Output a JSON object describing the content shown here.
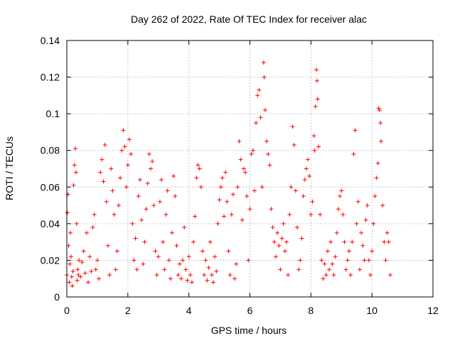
{
  "chart_data": {
    "type": "scatter",
    "title": "Day 262 of 2022, Rate Of TEC Index for receiver alac",
    "xlabel": "GPS time / hours",
    "ylabel": "ROTI / TECUs",
    "xlim": [
      0,
      12
    ],
    "ylim": [
      0,
      0.14
    ],
    "xticks": [
      0,
      2,
      4,
      6,
      8,
      10,
      12
    ],
    "yticks": [
      0,
      0.02,
      0.04,
      0.06,
      0.08,
      0.1,
      0.12,
      0.14
    ],
    "xtick_labels": [
      "0",
      "2",
      "4",
      "6",
      "8",
      "10",
      "12"
    ],
    "ytick_labels": [
      "0",
      "0.02",
      "0.04",
      "0.06",
      "0.08",
      "0.1",
      "0.12",
      "0.14"
    ],
    "grid": true,
    "marker": "+",
    "color": "#ff0000",
    "series": [
      {
        "points": [
          [
            0.0,
            0.012
          ],
          [
            0.02,
            0.046
          ],
          [
            0.04,
            0.056
          ],
          [
            0.06,
            0.028
          ],
          [
            0.08,
            0.008
          ],
          [
            0.1,
            0.018
          ],
          [
            0.12,
            0.035
          ],
          [
            0.14,
            0.022
          ],
          [
            0.16,
            0.011
          ],
          [
            0.18,
            0.006
          ],
          [
            0.2,
            0.014
          ],
          [
            0.22,
            0.061
          ],
          [
            0.25,
            0.072
          ],
          [
            0.28,
            0.081
          ],
          [
            0.3,
            0.068
          ],
          [
            0.32,
            0.04
          ],
          [
            0.34,
            0.009
          ],
          [
            0.36,
            0.015
          ],
          [
            0.38,
            0.012
          ],
          [
            0.4,
            0.02
          ],
          [
            0.45,
            0.011
          ],
          [
            0.5,
            0.019
          ],
          [
            0.55,
            0.025
          ],
          [
            0.6,
            0.013
          ],
          [
            0.65,
            0.035
          ],
          [
            0.7,
            0.008
          ],
          [
            0.75,
            0.022
          ],
          [
            0.8,
            0.014
          ],
          [
            0.85,
            0.038
          ],
          [
            0.9,
            0.045
          ],
          [
            0.95,
            0.015
          ],
          [
            1.0,
            0.02
          ],
          [
            1.05,
            0.01
          ],
          [
            1.1,
            0.068
          ],
          [
            1.15,
            0.075
          ],
          [
            1.2,
            0.063
          ],
          [
            1.25,
            0.083
          ],
          [
            1.3,
            0.052
          ],
          [
            1.35,
            0.028
          ],
          [
            1.4,
            0.012
          ],
          [
            1.45,
            0.07
          ],
          [
            1.5,
            0.058
          ],
          [
            1.55,
            0.045
          ],
          [
            1.6,
            0.015
          ],
          [
            1.65,
            0.025
          ],
          [
            1.7,
            0.05
          ],
          [
            1.75,
            0.065
          ],
          [
            1.8,
            0.08
          ],
          [
            1.85,
            0.091
          ],
          [
            1.9,
            0.082
          ],
          [
            1.95,
            0.06
          ],
          [
            2.0,
            0.072
          ],
          [
            2.05,
            0.086
          ],
          [
            2.1,
            0.078
          ],
          [
            2.15,
            0.04
          ],
          [
            2.2,
            0.02
          ],
          [
            2.25,
            0.032
          ],
          [
            2.3,
            0.015
          ],
          [
            2.35,
            0.055
          ],
          [
            2.4,
            0.064
          ],
          [
            2.45,
            0.042
          ],
          [
            2.5,
            0.018
          ],
          [
            2.55,
            0.03
          ],
          [
            2.6,
            0.048
          ],
          [
            2.65,
            0.062
          ],
          [
            2.7,
            0.078
          ],
          [
            2.75,
            0.07
          ],
          [
            2.8,
            0.074
          ],
          [
            2.85,
            0.05
          ],
          [
            2.9,
            0.025
          ],
          [
            2.95,
            0.012
          ],
          [
            3.0,
            0.022
          ],
          [
            3.05,
            0.052
          ],
          [
            3.1,
            0.064
          ],
          [
            3.15,
            0.03
          ],
          [
            3.2,
            0.015
          ],
          [
            3.25,
            0.045
          ],
          [
            3.3,
            0.058
          ],
          [
            3.35,
            0.02
          ],
          [
            3.4,
            0.01
          ],
          [
            3.45,
            0.035
          ],
          [
            3.5,
            0.066
          ],
          [
            3.55,
            0.055
          ],
          [
            3.6,
            0.028
          ],
          [
            3.65,
            0.012
          ],
          [
            3.7,
            0.018
          ],
          [
            3.75,
            0.01
          ],
          [
            3.8,
            0.02
          ],
          [
            3.85,
            0.038
          ],
          [
            3.9,
            0.015
          ],
          [
            3.95,
            0.009
          ],
          [
            4.0,
            0.022
          ],
          [
            4.05,
            0.012
          ],
          [
            4.1,
            0.008
          ],
          [
            4.15,
            0.03
          ],
          [
            4.2,
            0.044
          ],
          [
            4.25,
            0.065
          ],
          [
            4.3,
            0.072
          ],
          [
            4.35,
            0.07
          ],
          [
            4.4,
            0.06
          ],
          [
            4.45,
            0.025
          ],
          [
            4.5,
            0.012
          ],
          [
            4.55,
            0.02
          ],
          [
            4.6,
            0.009
          ],
          [
            4.65,
            0.016
          ],
          [
            4.7,
            0.03
          ],
          [
            4.75,
            0.012
          ],
          [
            4.8,
            0.008
          ],
          [
            4.85,
            0.022
          ],
          [
            4.9,
            0.014
          ],
          [
            4.95,
            0.04
          ],
          [
            5.0,
            0.053
          ],
          [
            5.05,
            0.06
          ],
          [
            5.1,
            0.065
          ],
          [
            5.15,
            0.044
          ],
          [
            5.2,
            0.068
          ],
          [
            5.25,
            0.052
          ],
          [
            5.3,
            0.025
          ],
          [
            5.35,
            0.012
          ],
          [
            5.4,
            0.045
          ],
          [
            5.45,
            0.056
          ],
          [
            5.5,
            0.01
          ],
          [
            5.55,
            0.018
          ],
          [
            5.6,
            0.06
          ],
          [
            5.65,
            0.085
          ],
          [
            5.7,
            0.075
          ],
          [
            5.75,
            0.042
          ],
          [
            5.8,
            0.07
          ],
          [
            5.85,
            0.068
          ],
          [
            5.9,
            0.055
          ],
          [
            5.95,
            0.02
          ],
          [
            6.0,
            0.048
          ],
          [
            6.05,
            0.078
          ],
          [
            6.1,
            0.08
          ],
          [
            6.15,
            0.058
          ],
          [
            6.2,
            0.095
          ],
          [
            6.25,
            0.11
          ],
          [
            6.3,
            0.113
          ],
          [
            6.35,
            0.098
          ],
          [
            6.4,
            0.06
          ],
          [
            6.45,
            0.128
          ],
          [
            6.47,
            0.12
          ],
          [
            6.5,
            0.102
          ],
          [
            6.55,
            0.085
          ],
          [
            6.6,
            0.078
          ],
          [
            6.65,
            0.072
          ],
          [
            6.7,
            0.048
          ],
          [
            6.75,
            0.038
          ],
          [
            6.8,
            0.03
          ],
          [
            6.85,
            0.022
          ],
          [
            6.9,
            0.035
          ],
          [
            6.95,
            0.028
          ],
          [
            7.0,
            0.015
          ],
          [
            7.05,
            0.032
          ],
          [
            7.1,
            0.04
          ],
          [
            7.15,
            0.025
          ],
          [
            7.2,
            0.03
          ],
          [
            7.25,
            0.012
          ],
          [
            7.3,
            0.045
          ],
          [
            7.35,
            0.06
          ],
          [
            7.4,
            0.093
          ],
          [
            7.45,
            0.083
          ],
          [
            7.5,
            0.058
          ],
          [
            7.55,
            0.038
          ],
          [
            7.6,
            0.015
          ],
          [
            7.65,
            0.02
          ],
          [
            7.7,
            0.032
          ],
          [
            7.75,
            0.055
          ],
          [
            7.8,
            0.064
          ],
          [
            7.85,
            0.07
          ],
          [
            7.9,
            0.075
          ],
          [
            7.95,
            0.066
          ],
          [
            8.0,
            0.045
          ],
          [
            8.05,
            0.052
          ],
          [
            8.1,
            0.088
          ],
          [
            8.12,
            0.08
          ],
          [
            8.15,
            0.104
          ],
          [
            8.18,
            0.124
          ],
          [
            8.2,
            0.118
          ],
          [
            8.22,
            0.108
          ],
          [
            8.25,
            0.082
          ],
          [
            8.3,
            0.045
          ],
          [
            8.35,
            0.02
          ],
          [
            8.4,
            0.01
          ],
          [
            8.45,
            0.018
          ],
          [
            8.5,
            0.012
          ],
          [
            8.55,
            0.025
          ],
          [
            8.6,
            0.015
          ],
          [
            8.65,
            0.03
          ],
          [
            8.7,
            0.018
          ],
          [
            8.75,
            0.012
          ],
          [
            8.8,
            0.022
          ],
          [
            8.85,
            0.035
          ],
          [
            8.9,
            0.048
          ],
          [
            8.95,
            0.055
          ],
          [
            9.0,
            0.058
          ],
          [
            9.05,
            0.045
          ],
          [
            9.1,
            0.03
          ],
          [
            9.15,
            0.015
          ],
          [
            9.2,
            0.02
          ],
          [
            9.25,
            0.025
          ],
          [
            9.3,
            0.012
          ],
          [
            9.35,
            0.03
          ],
          [
            9.4,
            0.078
          ],
          [
            9.45,
            0.091
          ],
          [
            9.5,
            0.04
          ],
          [
            9.55,
            0.052
          ],
          [
            9.6,
            0.015
          ],
          [
            9.65,
            0.035
          ],
          [
            9.7,
            0.028
          ],
          [
            9.75,
            0.02
          ],
          [
            9.8,
            0.042
          ],
          [
            9.85,
            0.05
          ],
          [
            9.9,
            0.02
          ],
          [
            9.95,
            0.012
          ],
          [
            10.0,
            0.025
          ],
          [
            10.05,
            0.04
          ],
          [
            10.1,
            0.055
          ],
          [
            10.15,
            0.065
          ],
          [
            10.2,
            0.073
          ],
          [
            10.22,
            0.103
          ],
          [
            10.25,
            0.102
          ],
          [
            10.28,
            0.095
          ],
          [
            10.3,
            0.085
          ],
          [
            10.35,
            0.05
          ],
          [
            10.4,
            0.03
          ],
          [
            10.45,
            0.02
          ],
          [
            10.5,
            0.035
          ],
          [
            10.55,
            0.03
          ],
          [
            10.6,
            0.012
          ]
        ]
      }
    ]
  }
}
